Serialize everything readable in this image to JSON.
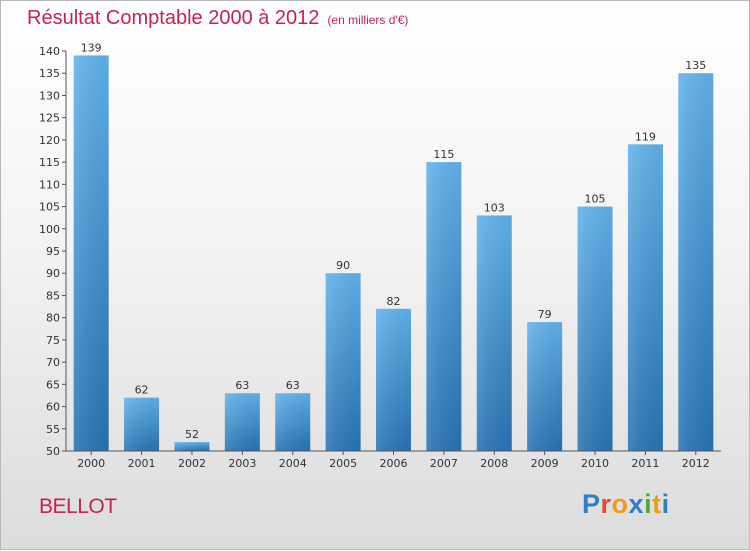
{
  "header": {
    "title": "Résultat Comptable 2000 à 2012",
    "subtitle": "(en milliers d'€)"
  },
  "commune": "BELLOT",
  "logo": {
    "text": "Proxiti",
    "letters": [
      "P",
      "r",
      "o",
      "x",
      "i",
      "t",
      "i"
    ]
  },
  "colors": {
    "title": "#c8224e",
    "bar_light": "#5fb0ea",
    "bar_dark": "#2978b8"
  },
  "chart_data": {
    "type": "bar",
    "title": "Résultat Comptable 2000 à 2012",
    "subtitle": "(en milliers d'€)",
    "xlabel": "",
    "ylabel": "",
    "categories": [
      "2000",
      "2001",
      "2002",
      "2003",
      "2004",
      "2005",
      "2006",
      "2007",
      "2008",
      "2009",
      "2010",
      "2011",
      "2012"
    ],
    "values": [
      139,
      62,
      52,
      63,
      63,
      90,
      82,
      115,
      103,
      79,
      105,
      119,
      135
    ],
    "data_labels": [
      "139",
      "62",
      "52",
      "63",
      "63",
      "90",
      "82",
      "115",
      "103",
      "79",
      "105",
      "119",
      "135"
    ],
    "ylim": [
      50,
      140
    ],
    "y_ticks": [
      50,
      55,
      60,
      65,
      70,
      75,
      80,
      85,
      90,
      95,
      100,
      105,
      110,
      115,
      120,
      125,
      130,
      135,
      140
    ],
    "y_tick_labels": [
      "50",
      "55",
      "60",
      "65",
      "70",
      "75",
      "80",
      "85",
      "90",
      "95",
      "100",
      "105",
      "110",
      "115",
      "120",
      "125",
      "130",
      "135",
      "140"
    ],
    "grid": false,
    "legend": "none"
  }
}
